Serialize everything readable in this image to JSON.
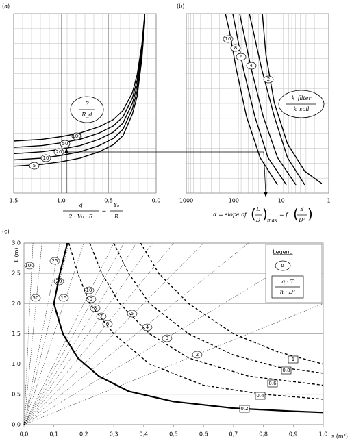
{
  "chart_data": [
    {
      "type": "line",
      "panel_label": "(a)",
      "xlim": [
        1.5,
        0.0
      ],
      "xticks": [
        1.5,
        {
          "value": 1,
          "label": "1.0"
        },
        0.5,
        {
          "value": 0,
          "label": "0.0"
        }
      ],
      "ylim": [
        0,
        10
      ],
      "grid": true,
      "fraction_label": {
        "numerator": "R",
        "denominator": "R_d"
      },
      "x_label": {
        "numerator": "q",
        "denominator": "2 · V₀ · R",
        "equals": "=",
        "rhs_numerator": "Yₚ",
        "rhs_denominator": "R"
      },
      "x": [
        1.5,
        1.2,
        1.0,
        0.8,
        0.6,
        0.45,
        0.35,
        0.25,
        0.2,
        0.15,
        0.12
      ],
      "series": [
        {
          "name": "100",
          "color": "#000000",
          "values": [
            2.9,
            3.0,
            3.15,
            3.35,
            3.7,
            4.1,
            4.6,
            5.6,
            6.6,
            8.3,
            10
          ]
        },
        {
          "name": "50",
          "color": "#000000",
          "values": [
            2.55,
            2.65,
            2.8,
            3.0,
            3.35,
            3.75,
            4.25,
            5.3,
            6.3,
            8.1,
            9.9
          ]
        },
        {
          "name": "20",
          "color": "#000000",
          "values": [
            2.2,
            2.3,
            2.45,
            2.65,
            3.0,
            3.4,
            3.9,
            5.0,
            6.0,
            7.9,
            9.8
          ]
        },
        {
          "name": "10",
          "color": "#000000",
          "values": [
            1.85,
            1.95,
            2.1,
            2.3,
            2.65,
            3.05,
            3.55,
            4.7,
            5.7,
            7.7,
            9.7
          ]
        },
        {
          "name": "5",
          "color": "#000000",
          "values": [
            1.5,
            1.6,
            1.75,
            1.95,
            2.3,
            2.7,
            3.2,
            4.4,
            5.4,
            7.5,
            9.6
          ]
        }
      ]
    },
    {
      "type": "line",
      "panel_label": "(b)",
      "log_x": true,
      "xlim": [
        1000,
        1
      ],
      "xticks": [
        1000,
        100,
        10,
        1
      ],
      "ylim": [
        0,
        10
      ],
      "grid": true,
      "fraction_label": {
        "numerator": "k_filter",
        "denominator": "k_soil"
      },
      "x_label": {
        "lead": "α = slope of",
        "numerator": "L",
        "denominator": "D",
        "subscript": "max",
        "equals": "= f",
        "rhs_numerator": "S",
        "rhs_denominator": "D²"
      },
      "series": [
        {
          "name": "10",
          "color": "#000000",
          "x": [
            150,
            124,
            89,
            54,
            28,
            12
          ],
          "values": [
            10,
            9.05,
            6.95,
            4.27,
            1.98,
            0.46
          ]
        },
        {
          "name": "8",
          "color": "#000000",
          "x": [
            105,
            89,
            63,
            36,
            19,
            7.8
          ],
          "values": [
            10,
            9.05,
            6.95,
            4.27,
            1.98,
            0.46
          ]
        },
        {
          "name": "6",
          "color": "#000000",
          "x": [
            75,
            63,
            43,
            24,
            12,
            4.9
          ],
          "values": [
            10,
            9.05,
            6.95,
            4.27,
            1.98,
            0.46
          ]
        },
        {
          "name": "4",
          "color": "#000000",
          "x": [
            47,
            39,
            26,
            14,
            7.4,
            3.2
          ],
          "values": [
            10,
            9.05,
            6.95,
            4.27,
            1.98,
            0.46
          ]
        },
        {
          "name": "2",
          "color": "#000000",
          "x": [
            25,
            21,
            14,
            7.4,
            3.2,
            1.4
          ],
          "values": [
            10,
            7.7,
            5.04,
            2.75,
            1.22,
            0.53
          ]
        }
      ]
    },
    {
      "type": "line",
      "panel_label": "(c)",
      "xlim": [
        0,
        1
      ],
      "xticks": [
        {
          "value": 0,
          "label": "0,0"
        },
        {
          "value": 0.1,
          "label": "0,1"
        },
        {
          "value": 0.2,
          "label": "0,2"
        },
        {
          "value": 0.3,
          "label": "0,3"
        },
        {
          "value": 0.4,
          "label": "0,4"
        },
        {
          "value": 0.5,
          "label": "0,5"
        },
        {
          "value": 0.6,
          "label": "0,6"
        },
        {
          "value": 0.7,
          "label": "0,7"
        },
        {
          "value": 0.8,
          "label": "0,8"
        },
        {
          "value": 0.9,
          "label": "0,9"
        },
        {
          "value": 1,
          "label": "1,0"
        }
      ],
      "ylim": [
        0,
        3
      ],
      "yticks": [
        {
          "value": 0,
          "label": "0,0"
        },
        {
          "value": 0.5,
          "label": "0,5"
        },
        {
          "value": 1,
          "label": "1,0"
        },
        {
          "value": 1.5,
          "label": "1,5"
        },
        {
          "value": 2,
          "label": "2,0"
        },
        {
          "value": 2.5,
          "label": "2,5"
        },
        {
          "value": 3,
          "label": "3,0"
        }
      ],
      "grid": true,
      "x_label": "s (m²)",
      "y_label": "L (m)",
      "legend": {
        "title": "Legend",
        "symbol": "α",
        "numerator": "q · T",
        "denominator": "n · D²"
      },
      "series": [
        {
          "name": "0.2",
          "color": "#000000",
          "style": "solid",
          "x": [
            0.145,
            0.12,
            0.1,
            0.13,
            0.18,
            0.25,
            0.35,
            0.5,
            0.7,
            0.9,
            1.0
          ],
          "values": [
            3.0,
            2.5,
            2.0,
            1.5,
            1.1,
            0.8,
            0.55,
            0.38,
            0.27,
            0.22,
            0.2
          ]
        },
        {
          "name": "0.4",
          "color": "#000000",
          "style": "dashed",
          "x": [
            0.15,
            0.18,
            0.22,
            0.3,
            0.42,
            0.6,
            0.8,
            1.0
          ],
          "values": [
            3.0,
            2.5,
            2.0,
            1.5,
            1.0,
            0.65,
            0.5,
            0.42
          ]
        },
        {
          "name": "0.6",
          "color": "#000000",
          "style": "dashed",
          "x": [
            0.22,
            0.26,
            0.32,
            0.42,
            0.55,
            0.75,
            1.0
          ],
          "values": [
            3.0,
            2.5,
            2.0,
            1.5,
            1.1,
            0.8,
            0.65
          ]
        },
        {
          "name": "0.8",
          "color": "#000000",
          "style": "dashed",
          "x": [
            0.3,
            0.35,
            0.42,
            0.55,
            0.7,
            0.85,
            1.0
          ],
          "values": [
            3.0,
            2.5,
            2.0,
            1.5,
            1.15,
            0.95,
            0.85
          ]
        },
        {
          "name": "1",
          "color": "#000000",
          "style": "dashed",
          "x": [
            0.39,
            0.45,
            0.55,
            0.7,
            0.85,
            1.0
          ],
          "values": [
            3.0,
            2.5,
            2.0,
            1.5,
            1.2,
            1.0
          ]
        }
      ],
      "rays": [
        {
          "name": "100",
          "slope": 100
        },
        {
          "name": "50",
          "slope": 50
        },
        {
          "name": "25",
          "slope": 25
        },
        {
          "name": "20",
          "slope": 20
        },
        {
          "name": "15",
          "slope": 15
        },
        {
          "name": "10",
          "slope": 10
        },
        {
          "name": "9",
          "slope": 9
        },
        {
          "name": "8",
          "slope": 8
        },
        {
          "name": "7",
          "slope": 7
        },
        {
          "name": "6",
          "slope": 6
        },
        {
          "name": "5",
          "slope": 5
        },
        {
          "name": "4",
          "slope": 4
        },
        {
          "name": "3",
          "slope": 3
        },
        {
          "name": "2",
          "slope": 2
        }
      ]
    }
  ]
}
